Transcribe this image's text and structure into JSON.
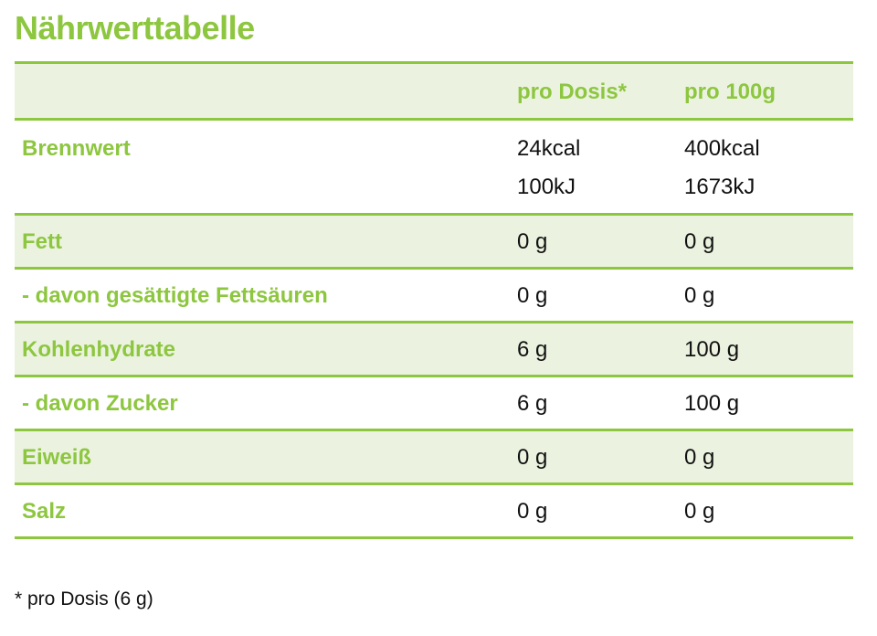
{
  "title": "Nährwerttabelle",
  "header": {
    "blank": "",
    "col1": "pro Dosis*",
    "col2": "pro 100g"
  },
  "rows": [
    {
      "label": "Brennwert",
      "dose": [
        "24kcal",
        "100kJ"
      ],
      "per100": [
        "400kcal",
        "1673kJ"
      ]
    },
    {
      "label": "Fett",
      "dose": "0 g",
      "per100": "0 g"
    },
    {
      "label": "- davon gesättigte Fettsäuren",
      "dose": "0 g",
      "per100": "0 g"
    },
    {
      "label": "Kohlenhydrate",
      "dose": "6 g",
      "per100": "100 g"
    },
    {
      "label": "- davon Zucker",
      "dose": "6 g",
      "per100": "100 g"
    },
    {
      "label": "Eiweiß",
      "dose": "0 g",
      "per100": "0 g"
    },
    {
      "label": "Salz",
      "dose": "0 g",
      "per100": "0 g"
    }
  ],
  "footnote": "* pro Dosis (6 g)",
  "colors": {
    "accent": "#8dc63f",
    "shade": "#ebf3e0",
    "text": "#111111"
  }
}
